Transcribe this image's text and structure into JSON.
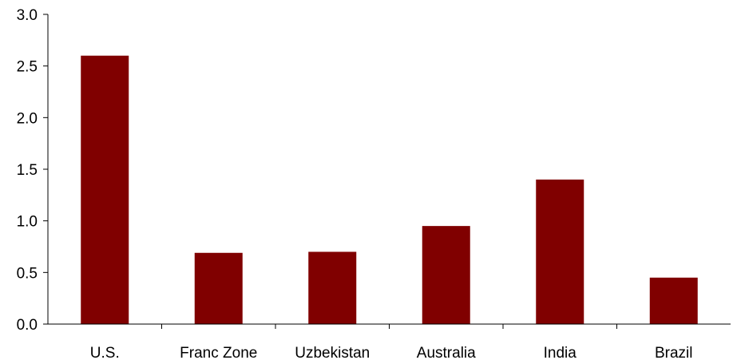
{
  "chart_data": {
    "type": "bar",
    "title": "",
    "xlabel": "",
    "ylabel": "",
    "categories": [
      "U.S.",
      "Franc Zone",
      "Uzbekistan",
      "Australia",
      "India",
      "Brazil"
    ],
    "values": [
      2.6,
      0.69,
      0.7,
      0.95,
      1.4,
      0.45
    ],
    "ylim": [
      0,
      3.0
    ],
    "yticks": [
      "0.0",
      "0.5",
      "1.0",
      "1.5",
      "2.0",
      "2.5",
      "3.0"
    ],
    "bar_color": "#800000",
    "grid": false,
    "legend": "none"
  }
}
